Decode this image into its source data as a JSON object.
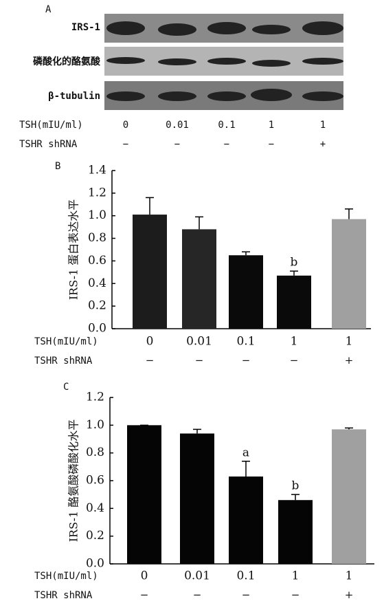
{
  "panel_a": {
    "label": "A",
    "rows": [
      "IRS-1",
      "磷酸化的酪氨酸",
      "β-tubulin"
    ],
    "tsh_label": "TSH(mIU/ml)",
    "tsh": [
      "0",
      "0.01",
      "0.1",
      "1",
      "1"
    ],
    "shrna_label": "TSHR shRNA",
    "shrna": [
      "−",
      "−",
      "−",
      "−",
      "+"
    ]
  },
  "chart_data": [
    {
      "type": "bar",
      "panel": "B",
      "ylabel": "IRS-1 蛋白表达水平",
      "category_label": "TSH(mIU/ml)",
      "categories": [
        "0",
        "0.01",
        "0.1",
        "1",
        "1"
      ],
      "shrna_label": "TSHR shRNA",
      "shrna": [
        "−",
        "−",
        "−",
        "−",
        "+"
      ],
      "values": [
        1.01,
        0.88,
        0.65,
        0.47,
        0.97
      ],
      "errors": [
        0.15,
        0.11,
        0.03,
        0.04,
        0.09
      ],
      "colors": [
        "#1c1c1c",
        "#262626",
        "#0a0a0a",
        "#0a0a0a",
        "#a0a0a0"
      ],
      "bar_labels": [
        null,
        null,
        null,
        "b",
        null
      ],
      "ylim": [
        0,
        1.4
      ],
      "yticks": [
        {
          "value": 0,
          "label": "0.0"
        },
        0.2,
        0.4,
        0.6,
        0.8,
        {
          "value": 1,
          "label": "1.0"
        },
        1.2,
        1.4
      ]
    },
    {
      "type": "bar",
      "panel": "C",
      "ylabel": "IRS-1 酪氨酸磷酸化水平",
      "category_label": "TSH(mIU/ml)",
      "categories": [
        "0",
        "0.01",
        "0.1",
        "1",
        "1"
      ],
      "shrna_label": "TSHR shRNA",
      "shrna": [
        "−",
        "−",
        "−",
        "−",
        "+"
      ],
      "values": [
        1.0,
        0.94,
        0.63,
        0.46,
        0.97
      ],
      "errors": [
        0,
        0.03,
        0.11,
        0.04,
        0.01
      ],
      "colors": [
        "#050505",
        "#050505",
        "#050505",
        "#050505",
        "#a0a0a0"
      ],
      "bar_labels": [
        null,
        null,
        "a",
        "b",
        null
      ],
      "ylim": [
        0,
        1.2
      ],
      "yticks": [
        {
          "value": 0,
          "label": "0.0"
        },
        0.2,
        0.4,
        0.6,
        0.8,
        {
          "value": 1,
          "label": "1.0"
        },
        1.2
      ]
    }
  ]
}
